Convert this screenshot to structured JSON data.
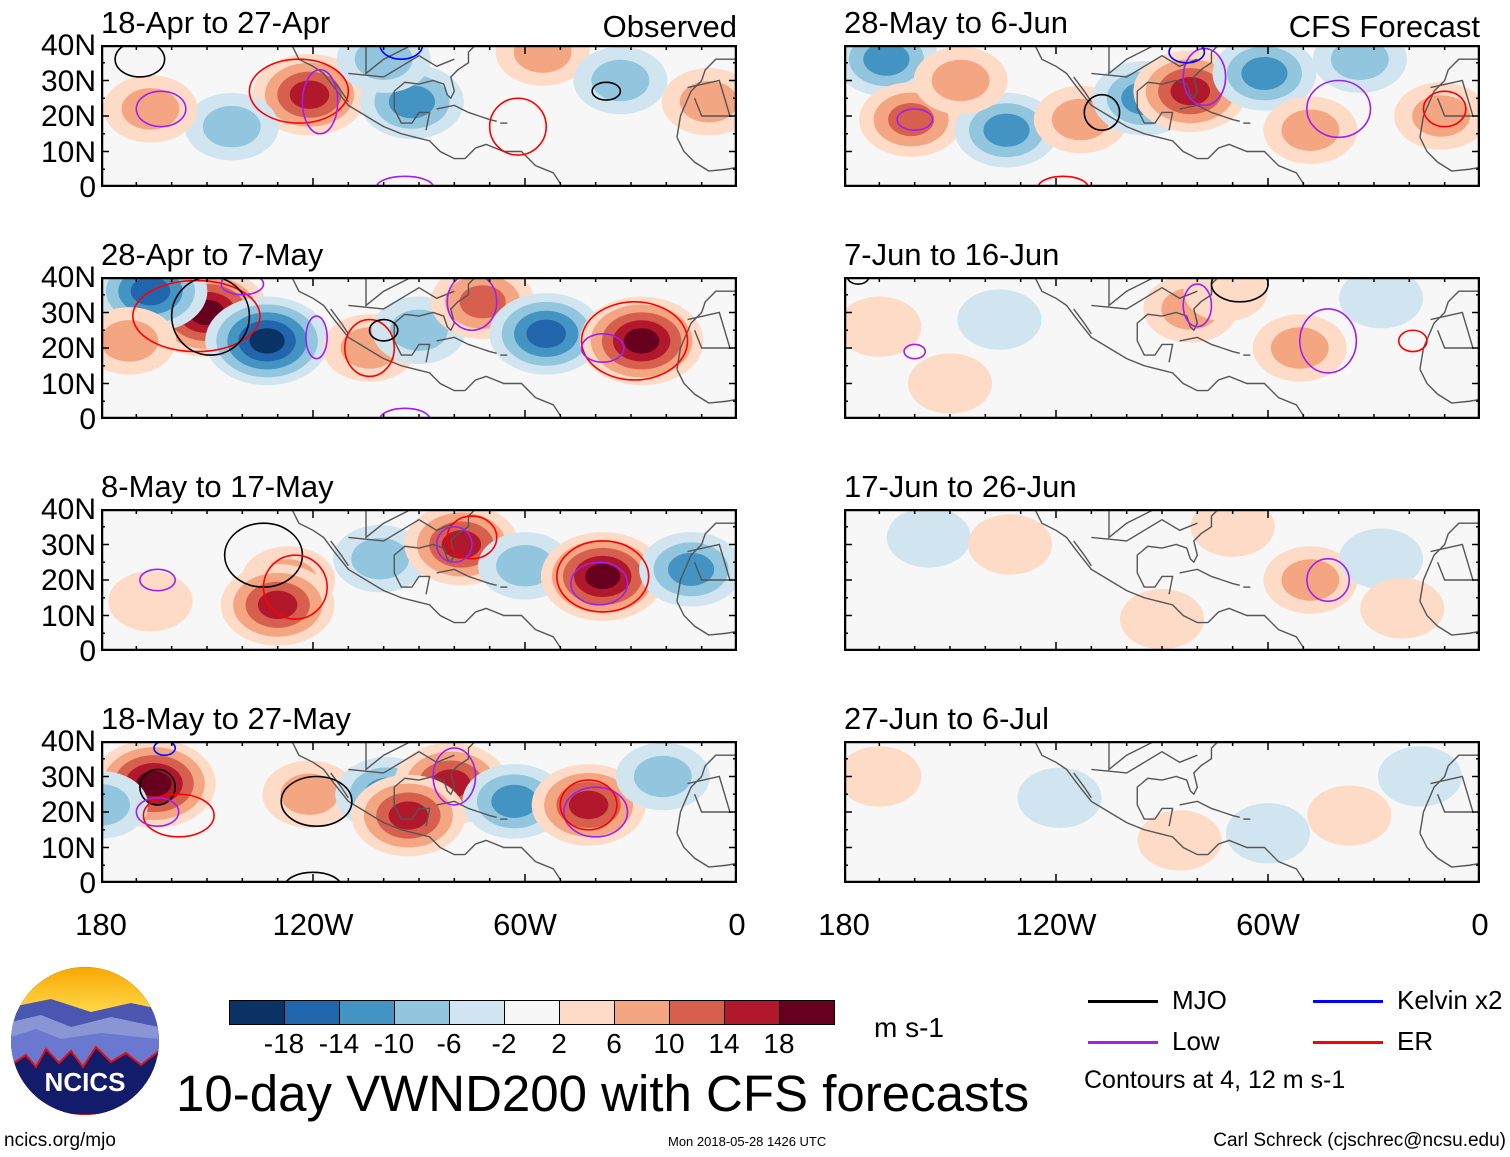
{
  "figure": {
    "title": "10-day VWND200 with CFS forecasts",
    "observed_label": "Observed",
    "forecast_label": "CFS Forecast",
    "website": "ncics.org/mjo",
    "timestamp": "Mon 2018-05-28 1426 UTC",
    "author": "Carl Schreck (cjschrec@ncsu.edu)",
    "logo_text": "NCICS"
  },
  "axes": {
    "lat_labels": [
      "40N",
      "30N",
      "20N",
      "10N",
      "0"
    ],
    "lon_labels": [
      "180",
      "120W",
      "60W",
      "0"
    ]
  },
  "colorbar": {
    "colors": [
      "#0a3265",
      "#2166ac",
      "#4393c3",
      "#92c5de",
      "#d1e5f0",
      "#f7f7f7",
      "#fddbc7",
      "#f4a582",
      "#d6604d",
      "#b2182b",
      "#67001f"
    ],
    "labels": [
      "-18",
      "-14",
      "-10",
      "-6",
      "-2",
      "2",
      "6",
      "10",
      "14",
      "18"
    ],
    "units": "m s-1"
  },
  "legend": {
    "items": [
      {
        "label": "MJO",
        "color": "#000000"
      },
      {
        "label": "Kelvin x2",
        "color": "#0000ff"
      },
      {
        "label": "Low",
        "color": "#a020f0"
      },
      {
        "label": "ER",
        "color": "#ff0000"
      }
    ],
    "note": "Contours at 4, 12 m s-1"
  },
  "panels": [
    {
      "title": "18-Apr to 27-Apr",
      "col": 0,
      "row": 0,
      "anomalies": [
        [
          121,
          26,
          14
        ],
        [
          92,
          24,
          -10
        ],
        [
          143,
          17,
          -6
        ],
        [
          166,
          22,
          6
        ],
        [
          55,
          38,
          6
        ],
        [
          33,
          30,
          -6
        ],
        [
          8,
          24,
          6
        ],
        [
          100,
          36,
          -6
        ]
      ],
      "contours": [
        [
          "ER",
          124,
          27,
          14,
          9
        ],
        [
          "Low",
          118,
          24,
          5,
          9
        ],
        [
          "ER",
          62,
          17,
          8,
          8
        ],
        [
          "Low",
          163,
          22,
          7,
          5
        ],
        [
          "MJO",
          169,
          36,
          7,
          5
        ],
        [
          "MJO",
          37,
          27,
          4,
          2.5
        ],
        [
          "Low",
          94,
          0,
          8,
          3
        ],
        [
          "Kelvin",
          95,
          40,
          6,
          4
        ]
      ]
    },
    {
      "title": "28-Apr to 7-May",
      "col": 0,
      "row": 1,
      "anomalies": [
        [
          150,
          30,
          18
        ],
        [
          166,
          36,
          -14
        ],
        [
          133,
          22,
          -18
        ],
        [
          104,
          20,
          6
        ],
        [
          90,
          25,
          -6
        ],
        [
          72,
          33,
          10
        ],
        [
          54,
          24,
          -14
        ],
        [
          27,
          22,
          18
        ],
        [
          172,
          22,
          6
        ]
      ],
      "contours": [
        [
          "ER",
          153,
          29,
          18,
          10
        ],
        [
          "MJO",
          149,
          29,
          11,
          11
        ],
        [
          "Low",
          119,
          23,
          3,
          6
        ],
        [
          "ER",
          104,
          20,
          7,
          8
        ],
        [
          "ER",
          29,
          22,
          15,
          11
        ],
        [
          "Low",
          38,
          20,
          6,
          4
        ],
        [
          "Low",
          140,
          38,
          6,
          3
        ],
        [
          "MJO",
          100,
          25,
          4,
          3
        ],
        [
          "Low",
          94,
          0,
          7,
          3
        ],
        [
          "Low",
          75,
          33,
          7,
          8
        ]
      ]
    },
    {
      "title": "8-May to 17-May",
      "col": 0,
      "row": 2,
      "anomalies": [
        [
          127,
          20,
          6
        ],
        [
          130,
          13,
          14
        ],
        [
          101,
          26,
          -6
        ],
        [
          78,
          30,
          14
        ],
        [
          60,
          24,
          -6
        ],
        [
          38,
          21,
          18
        ],
        [
          13,
          23,
          -10
        ],
        [
          166,
          14,
          2
        ]
      ],
      "contours": [
        [
          "MJO",
          134,
          27,
          11,
          9
        ],
        [
          "ER",
          125,
          18,
          9,
          9
        ],
        [
          "Low",
          164,
          20,
          5,
          3
        ],
        [
          "ER",
          75,
          32,
          7,
          6
        ],
        [
          "Low",
          80,
          30,
          5,
          5
        ],
        [
          "ER",
          38,
          21,
          13,
          10
        ],
        [
          "Low",
          39,
          19,
          8,
          6
        ]
      ]
    },
    {
      "title": "18-May to 27-May",
      "col": 0,
      "row": 3,
      "anomalies": [
        [
          165,
          28,
          18
        ],
        [
          121,
          25,
          6
        ],
        [
          99,
          25,
          -10
        ],
        [
          81,
          28,
          14
        ],
        [
          63,
          23,
          -10
        ],
        [
          42,
          22,
          14
        ],
        [
          21,
          30,
          -6
        ],
        [
          180,
          22,
          -6
        ],
        [
          93,
          19,
          14
        ]
      ],
      "contours": [
        [
          "MJO",
          164,
          27,
          5,
          5
        ],
        [
          "ER",
          158,
          19,
          10,
          6
        ],
        [
          "Low",
          164,
          20,
          6,
          4
        ],
        [
          "MJO",
          119,
          23,
          10,
          7
        ],
        [
          "Low",
          80,
          30,
          6,
          8
        ],
        [
          "Low",
          40,
          20,
          9,
          7
        ],
        [
          "ER",
          42,
          22,
          8,
          7
        ],
        [
          "Kelvin",
          162,
          38,
          3,
          2
        ],
        [
          "MJO",
          120,
          -1,
          8,
          4
        ]
      ]
    },
    {
      "title": "28-May to 6-Jun",
      "col": 1,
      "row": 0,
      "anomalies": [
        [
          168,
          36,
          -10
        ],
        [
          161,
          19,
          10
        ],
        [
          134,
          16,
          -10
        ],
        [
          147,
          30,
          6
        ],
        [
          113,
          19,
          6
        ],
        [
          95,
          25,
          -10
        ],
        [
          82,
          27,
          14
        ],
        [
          61,
          32,
          -10
        ],
        [
          48,
          16,
          6
        ],
        [
          11,
          20,
          6
        ],
        [
          34,
          36,
          -6
        ]
      ],
      "contours": [
        [
          "Low",
          160,
          19,
          5,
          3
        ],
        [
          "MJO",
          107,
          21,
          5,
          5
        ],
        [
          "Low",
          78,
          31,
          6,
          8
        ],
        [
          "Low",
          40,
          22,
          9,
          8
        ],
        [
          "ER",
          10,
          22,
          6,
          5
        ],
        [
          "ER",
          118,
          0,
          7,
          3
        ],
        [
          "Kelvin",
          83,
          38,
          5,
          3
        ]
      ]
    },
    {
      "title": "7-Jun to 16-Jun",
      "col": 1,
      "row": 1,
      "anomalies": [
        [
          82,
          31,
          6
        ],
        [
          51,
          20,
          6
        ],
        [
          136,
          28,
          -2
        ],
        [
          170,
          26,
          2
        ],
        [
          28,
          34,
          -2
        ],
        [
          72,
          36,
          2
        ],
        [
          150,
          10,
          2
        ]
      ],
      "contours": [
        [
          "Low",
          160,
          19,
          3,
          2
        ],
        [
          "Low",
          80,
          32,
          4,
          6
        ],
        [
          "MJO",
          68,
          38,
          8,
          5
        ],
        [
          "Low",
          43,
          22,
          8,
          9
        ],
        [
          "ER",
          19,
          22,
          4,
          3
        ],
        [
          "MJO",
          176,
          40,
          3,
          2
        ]
      ]
    },
    {
      "title": "17-Jun to 26-Jun",
      "col": 1,
      "row": 2,
      "anomalies": [
        [
          48,
          20,
          6
        ],
        [
          156,
          32,
          -2
        ],
        [
          133,
          30,
          2
        ],
        [
          28,
          26,
          -2
        ],
        [
          22,
          12,
          2
        ],
        [
          90,
          9,
          2
        ],
        [
          70,
          35,
          2
        ]
      ],
      "contours": [
        [
          "Low",
          43,
          20,
          6,
          6
        ]
      ]
    },
    {
      "title": "27-Jun to 6-Jul",
      "col": 1,
      "row": 3,
      "anomalies": [
        [
          119,
          24,
          -2
        ],
        [
          85,
          12,
          2
        ],
        [
          37,
          19,
          2
        ],
        [
          17,
          30,
          -2
        ],
        [
          170,
          30,
          2
        ],
        [
          60,
          14,
          -2
        ]
      ],
      "contours": []
    }
  ]
}
